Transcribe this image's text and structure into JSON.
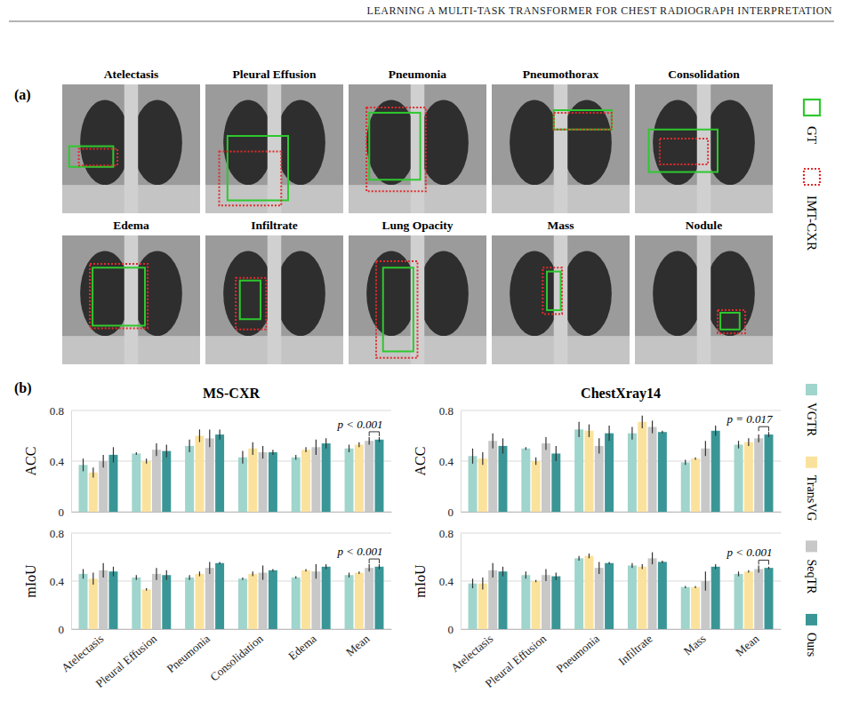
{
  "header": "LEARNING A MULTI-TASK TRANSFORMER FOR CHEST RADIOGRAPH INTERPRETATION",
  "panel_a": {
    "label": "(a)",
    "images": [
      "Atelectasis",
      "Pleural Effusion",
      "Pneumonia",
      "Pneumothorax",
      "Consolidation",
      "Edema",
      "Infiltrate",
      "Lung Opacity",
      "Mass",
      "Nodule"
    ],
    "legend": [
      {
        "name": "GT",
        "color": "#2ec82e",
        "line_style": "solid"
      },
      {
        "name": "IMT-CXR",
        "color": "#e02b2b",
        "line_style": "dotted"
      }
    ]
  },
  "panel_b": {
    "label": "(b)"
  },
  "chart_data": [
    {
      "type": "bar",
      "title": "MS-CXR",
      "ylabel": "ACC",
      "categories": [
        "Atelectasis",
        "Pleural Effusion",
        "Pneumonia",
        "Consolidation",
        "Edema",
        "Mean"
      ],
      "series": [
        {
          "name": "VGTR",
          "color": "#9fd5cc",
          "values": [
            0.37,
            0.46,
            0.52,
            0.43,
            0.43,
            0.5
          ],
          "errors": [
            0.05,
            0.01,
            0.05,
            0.05,
            0.02,
            0.03
          ]
        },
        {
          "name": "TransVG",
          "color": "#fbe29c",
          "values": [
            0.31,
            0.4,
            0.6,
            0.5,
            0.49,
            0.53
          ],
          "errors": [
            0.04,
            0.02,
            0.05,
            0.05,
            0.02,
            0.02
          ]
        },
        {
          "name": "SeqTR",
          "color": "#c8c8c8",
          "values": [
            0.4,
            0.49,
            0.58,
            0.47,
            0.51,
            0.56
          ],
          "errors": [
            0.05,
            0.05,
            0.07,
            0.05,
            0.06,
            0.03
          ]
        },
        {
          "name": "Ours",
          "color": "#3a9696",
          "values": [
            0.45,
            0.48,
            0.61,
            0.47,
            0.54,
            0.57
          ],
          "errors": [
            0.06,
            0.05,
            0.04,
            0.02,
            0.04,
            0.02
          ]
        }
      ],
      "ylim": [
        0,
        0.8
      ],
      "yticks": [
        0,
        0.4,
        0.8
      ],
      "grid": true,
      "tick_labels": "y",
      "legend": "right",
      "annotation": "p < 0.001"
    },
    {
      "type": "bar",
      "ylabel": "mIoU",
      "categories": [
        "Atelectasis",
        "Pleural Effusion",
        "Pneumonia",
        "Consolidation",
        "Edema",
        "Mean"
      ],
      "series": [
        {
          "name": "VGTR",
          "color": "#9fd5cc",
          "values": [
            0.46,
            0.43,
            0.43,
            0.42,
            0.43,
            0.45
          ],
          "errors": [
            0.04,
            0.02,
            0.02,
            0.01,
            0.01,
            0.02
          ]
        },
        {
          "name": "TransVG",
          "color": "#fbe29c",
          "values": [
            0.42,
            0.33,
            0.46,
            0.46,
            0.49,
            0.47
          ],
          "errors": [
            0.05,
            0.01,
            0.02,
            0.02,
            0.01,
            0.01
          ]
        },
        {
          "name": "SeqTR",
          "color": "#c8c8c8",
          "values": [
            0.49,
            0.46,
            0.51,
            0.47,
            0.48,
            0.51
          ],
          "errors": [
            0.06,
            0.05,
            0.05,
            0.06,
            0.06,
            0.03
          ]
        },
        {
          "name": "Ours",
          "color": "#3a9696",
          "values": [
            0.48,
            0.45,
            0.55,
            0.49,
            0.52,
            0.52
          ],
          "errors": [
            0.04,
            0.04,
            0.01,
            0.01,
            0.02,
            0.02
          ]
        }
      ],
      "ylim": [
        0,
        0.8
      ],
      "yticks": [
        0,
        0.4,
        0.8
      ],
      "grid": true,
      "annotation": "p < 0.001"
    },
    {
      "type": "bar",
      "title": "ChestXray14",
      "ylabel": "ACC",
      "categories": [
        "Atelectasis",
        "Pleural Effusion",
        "Pneumonia",
        "Infiltrate",
        "Mass",
        "Mean"
      ],
      "series": [
        {
          "name": "VGTR",
          "color": "#9fd5cc",
          "values": [
            0.44,
            0.5,
            0.65,
            0.62,
            0.39,
            0.53
          ],
          "errors": [
            0.06,
            0.01,
            0.06,
            0.05,
            0.02,
            0.03
          ]
        },
        {
          "name": "TransVG",
          "color": "#fbe29c",
          "values": [
            0.42,
            0.4,
            0.64,
            0.71,
            0.42,
            0.55
          ],
          "errors": [
            0.05,
            0.03,
            0.05,
            0.05,
            0.01,
            0.03
          ]
        },
        {
          "name": "SeqTR",
          "color": "#c8c8c8",
          "values": [
            0.56,
            0.54,
            0.52,
            0.67,
            0.5,
            0.58
          ],
          "errors": [
            0.06,
            0.05,
            0.06,
            0.05,
            0.06,
            0.03
          ]
        },
        {
          "name": "Ours",
          "color": "#3a9696",
          "values": [
            0.52,
            0.46,
            0.62,
            0.63,
            0.64,
            0.61
          ],
          "errors": [
            0.06,
            0.06,
            0.06,
            0.01,
            0.04,
            0.02
          ]
        }
      ],
      "ylim": [
        0,
        0.8
      ],
      "yticks": [
        0,
        0.4,
        0.8
      ],
      "grid": true,
      "tick_labels": "y",
      "annotation": "p = 0.017"
    },
    {
      "type": "bar",
      "ylabel": "mIoU",
      "categories": [
        "Atelectasis",
        "Pleural Effusion",
        "Pneumonia",
        "Infiltrate",
        "Mass",
        "Mean"
      ],
      "series": [
        {
          "name": "VGTR",
          "color": "#9fd5cc",
          "values": [
            0.38,
            0.45,
            0.59,
            0.53,
            0.35,
            0.46
          ],
          "errors": [
            0.04,
            0.03,
            0.02,
            0.02,
            0.01,
            0.02
          ]
        },
        {
          "name": "TransVG",
          "color": "#fbe29c",
          "values": [
            0.38,
            0.4,
            0.61,
            0.52,
            0.35,
            0.48
          ],
          "errors": [
            0.05,
            0.01,
            0.02,
            0.02,
            0.01,
            0.01
          ]
        },
        {
          "name": "SeqTR",
          "color": "#c8c8c8",
          "values": [
            0.49,
            0.45,
            0.51,
            0.59,
            0.4,
            0.5
          ],
          "errors": [
            0.06,
            0.05,
            0.05,
            0.05,
            0.08,
            0.03
          ]
        },
        {
          "name": "Ours",
          "color": "#3a9696",
          "values": [
            0.48,
            0.44,
            0.55,
            0.56,
            0.52,
            0.51
          ],
          "errors": [
            0.04,
            0.03,
            0.01,
            0.01,
            0.02,
            0.01
          ]
        }
      ],
      "ylim": [
        0,
        0.8
      ],
      "yticks": [
        0,
        0.4,
        0.8
      ],
      "grid": true,
      "annotation": "p < 0.001"
    }
  ]
}
